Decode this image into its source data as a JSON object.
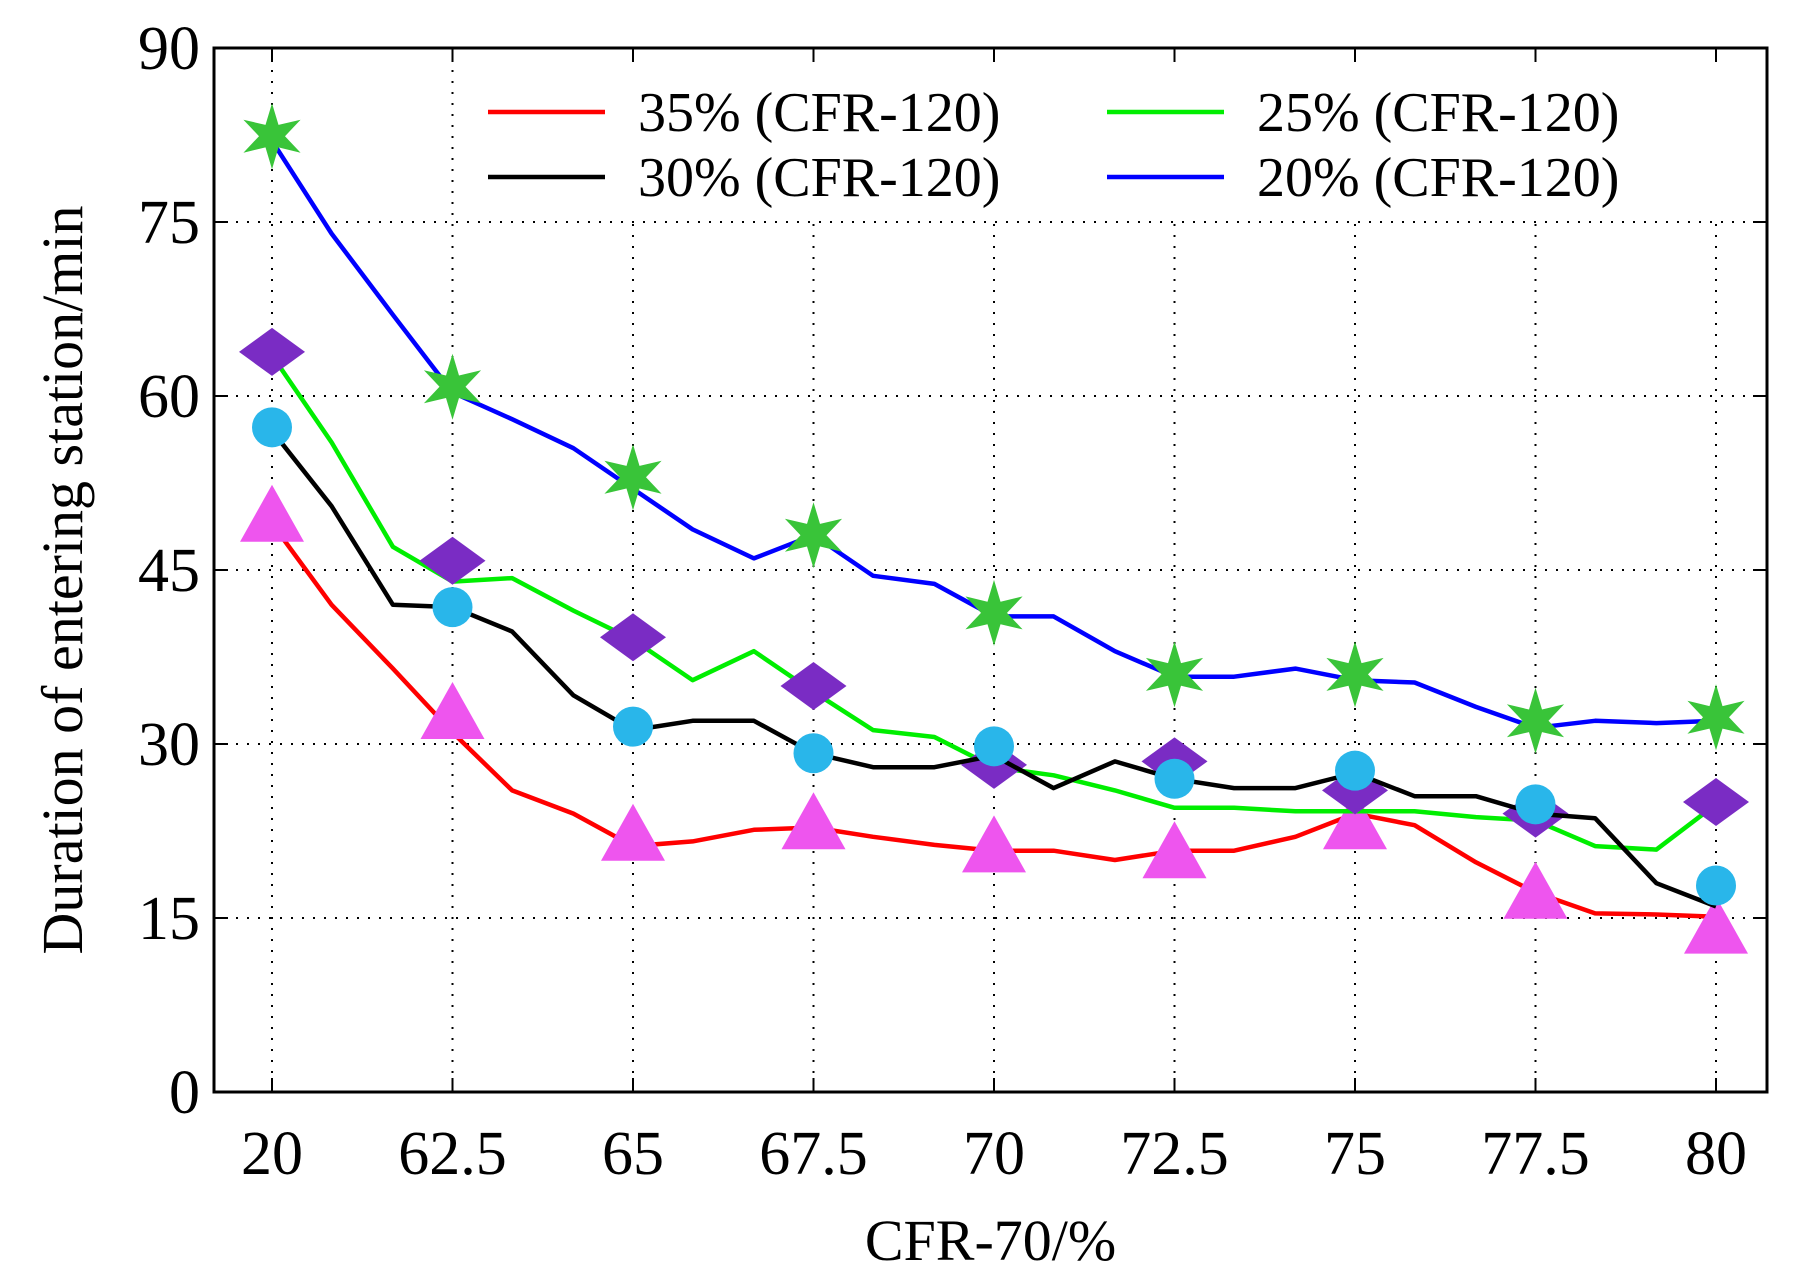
{
  "chart_data": {
    "type": "line",
    "xlabel": "CFR-70/%",
    "ylabel": "Duration of entering station/min",
    "categories": [
      "20",
      "62.5",
      "65",
      "67.5",
      "70",
      "72.5",
      "75",
      "77.5",
      "80"
    ],
    "ylim": [
      0,
      90
    ],
    "yticks": [
      "0",
      "15",
      "30",
      "45",
      "60",
      "75",
      "90"
    ],
    "grid": true,
    "legend_position": "top",
    "series": [
      {
        "name": "35% (CFR-120)",
        "color": "#ff0000",
        "marker": "triangle",
        "marker_color": "#ee55ee",
        "line": [
          [
            0,
            49
          ],
          [
            0.33,
            42
          ],
          [
            0.67,
            36.5
          ],
          [
            1,
            31
          ],
          [
            1.33,
            26
          ],
          [
            1.67,
            24
          ],
          [
            2,
            21.2
          ],
          [
            2.33,
            21.6
          ],
          [
            2.67,
            22.6
          ],
          [
            3,
            22.8
          ],
          [
            3.33,
            22
          ],
          [
            3.67,
            21.3
          ],
          [
            4,
            20.8
          ],
          [
            4.33,
            20.8
          ],
          [
            4.67,
            20
          ],
          [
            5,
            20.8
          ],
          [
            5.33,
            20.8
          ],
          [
            5.67,
            22
          ],
          [
            6,
            24
          ],
          [
            6.33,
            23
          ],
          [
            6.67,
            19.8
          ],
          [
            7,
            17.2
          ],
          [
            7.33,
            15.4
          ],
          [
            7.67,
            15.3
          ],
          [
            8,
            15.1
          ]
        ],
        "markers": [
          [
            0,
            49.5
          ],
          [
            1,
            32.5
          ],
          [
            2,
            22
          ],
          [
            3,
            23
          ],
          [
            4,
            21
          ],
          [
            5,
            20.5
          ],
          [
            6,
            23
          ],
          [
            7,
            17
          ],
          [
            8,
            14
          ]
        ]
      },
      {
        "name": "25% (CFR-120)",
        "color": "#00ee00",
        "marker": "diamond",
        "marker_color": "#7a2cc4",
        "line": [
          [
            0,
            63.5
          ],
          [
            0.33,
            56
          ],
          [
            0.67,
            47
          ],
          [
            1,
            44
          ],
          [
            1.33,
            44.3
          ],
          [
            1.67,
            41.5
          ],
          [
            2,
            39
          ],
          [
            2.33,
            35.5
          ],
          [
            2.67,
            38
          ],
          [
            3,
            34.5
          ],
          [
            3.33,
            31.2
          ],
          [
            3.67,
            30.6
          ],
          [
            4,
            28
          ],
          [
            4.33,
            27.3
          ],
          [
            4.67,
            26
          ],
          [
            5,
            24.5
          ],
          [
            5.33,
            24.5
          ],
          [
            5.67,
            24.2
          ],
          [
            6,
            24.2
          ],
          [
            6.33,
            24.2
          ],
          [
            6.67,
            23.7
          ],
          [
            7,
            23.4
          ],
          [
            7.33,
            21.2
          ],
          [
            7.67,
            20.9
          ],
          [
            8,
            24.8
          ]
        ],
        "markers": [
          [
            0,
            63.8
          ],
          [
            1,
            45.8
          ],
          [
            2,
            39.2
          ],
          [
            3,
            35
          ],
          [
            4,
            28.2
          ],
          [
            5,
            28.5
          ],
          [
            6,
            26
          ],
          [
            7,
            24
          ],
          [
            8,
            25
          ]
        ]
      },
      {
        "name": "30% (CFR-120)",
        "color": "#000000",
        "marker": "circle",
        "marker_color": "#29b6ea",
        "line": [
          [
            0,
            57
          ],
          [
            0.33,
            50.5
          ],
          [
            0.67,
            42
          ],
          [
            1,
            41.8
          ],
          [
            1.33,
            39.7
          ],
          [
            1.67,
            34.2
          ],
          [
            2,
            31.2
          ],
          [
            2.33,
            32
          ],
          [
            2.67,
            32
          ],
          [
            3,
            29.2
          ],
          [
            3.33,
            28
          ],
          [
            3.67,
            28
          ],
          [
            4,
            29
          ],
          [
            4.33,
            26.2
          ],
          [
            4.67,
            28.5
          ],
          [
            5,
            27
          ],
          [
            5.33,
            26.2
          ],
          [
            5.67,
            26.2
          ],
          [
            6,
            27.5
          ],
          [
            6.33,
            25.5
          ],
          [
            6.67,
            25.5
          ],
          [
            7,
            24
          ],
          [
            7.33,
            23.6
          ],
          [
            7.67,
            18
          ],
          [
            8,
            16
          ]
        ],
        "markers": [
          [
            0,
            57.3
          ],
          [
            1,
            41.8
          ],
          [
            2,
            31.5
          ],
          [
            3,
            29.2
          ],
          [
            4,
            29.8
          ],
          [
            5,
            27
          ],
          [
            6,
            27.7
          ],
          [
            7,
            24.8
          ],
          [
            8,
            17.8
          ]
        ]
      },
      {
        "name": "20% (CFR-120)",
        "color": "#0000ff",
        "marker": "star",
        "marker_color": "#39c439",
        "line": [
          [
            0,
            82
          ],
          [
            0.33,
            74
          ],
          [
            0.67,
            67
          ],
          [
            1,
            60.3
          ],
          [
            1.33,
            58
          ],
          [
            1.67,
            55.5
          ],
          [
            2,
            52
          ],
          [
            2.33,
            48.5
          ],
          [
            2.67,
            46
          ],
          [
            3,
            48
          ],
          [
            3.33,
            44.5
          ],
          [
            3.67,
            43.8
          ],
          [
            4,
            41
          ],
          [
            4.33,
            41
          ],
          [
            4.67,
            38
          ],
          [
            5,
            35.8
          ],
          [
            5.33,
            35.8
          ],
          [
            5.67,
            36.5
          ],
          [
            6,
            35.5
          ],
          [
            6.33,
            35.3
          ],
          [
            6.67,
            33.2
          ],
          [
            7,
            31.4
          ],
          [
            7.33,
            32
          ],
          [
            7.67,
            31.8
          ],
          [
            8,
            32
          ]
        ],
        "markers": [
          [
            0,
            82.4
          ],
          [
            1,
            60.8
          ],
          [
            2,
            53
          ],
          [
            3,
            48
          ],
          [
            4,
            41.3
          ],
          [
            5,
            36
          ],
          [
            6,
            36
          ],
          [
            7,
            32
          ],
          [
            8,
            32.3
          ]
        ]
      }
    ]
  }
}
